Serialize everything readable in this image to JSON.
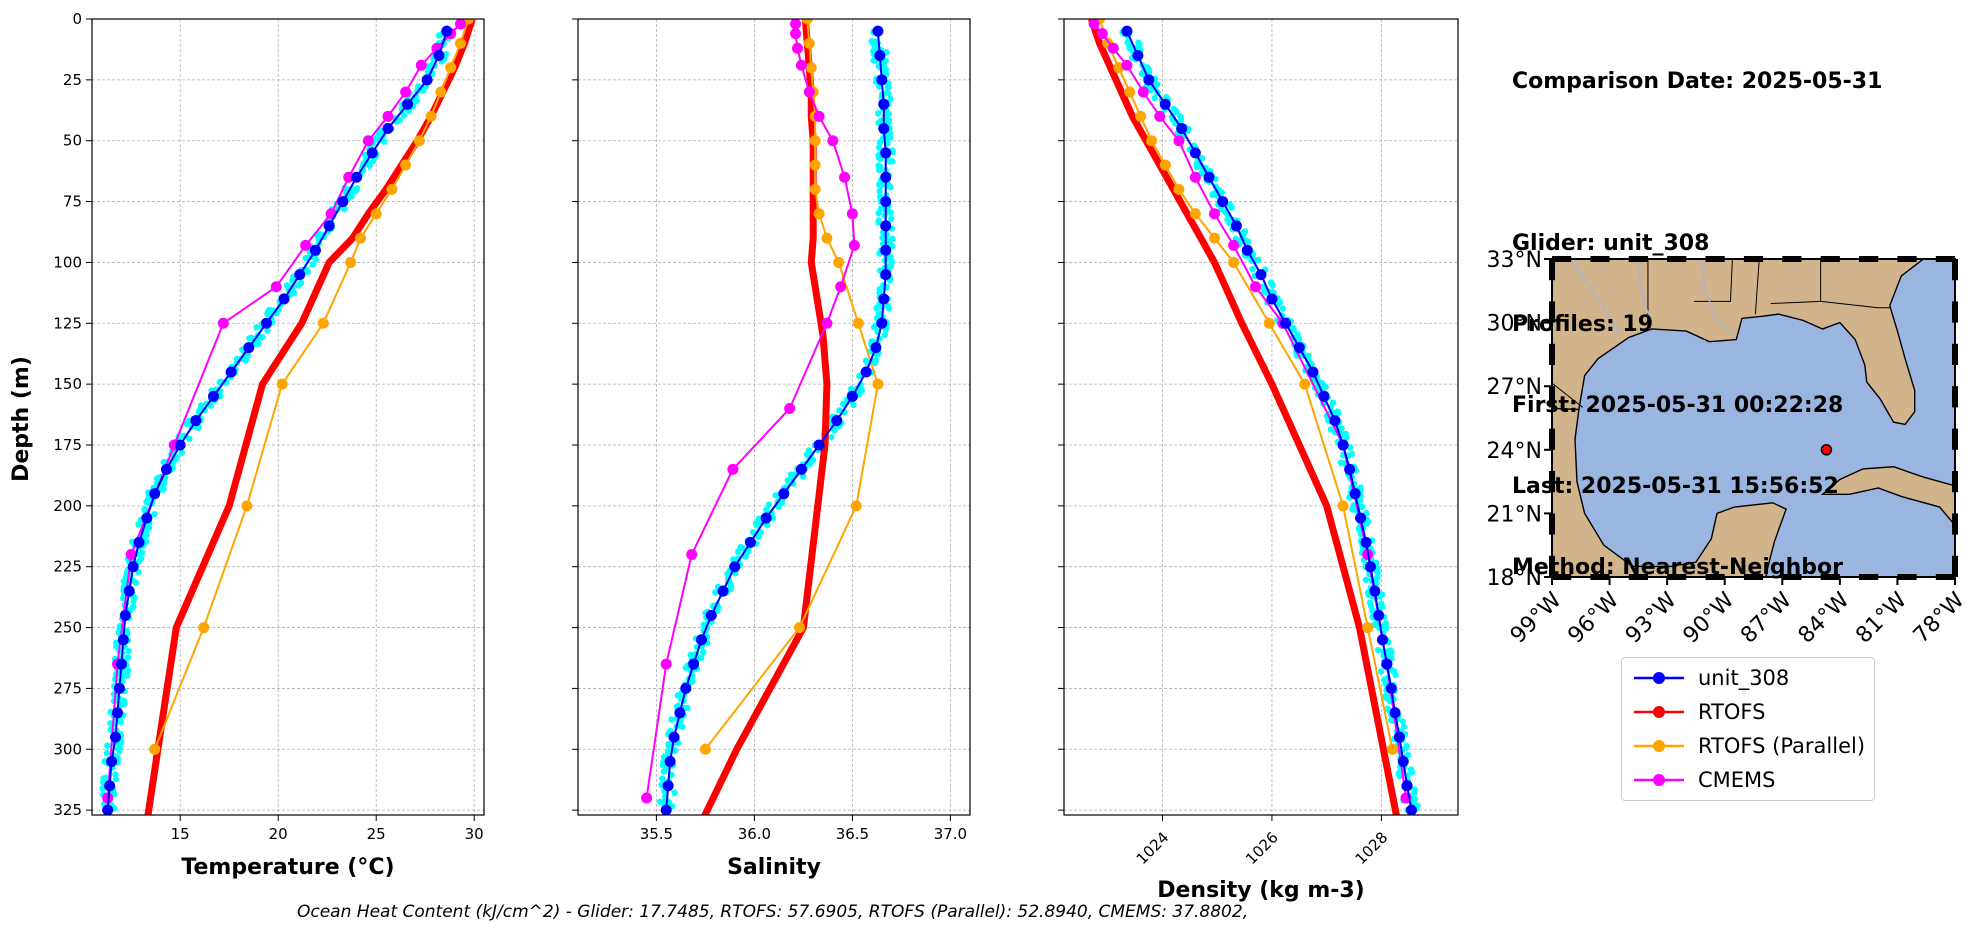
{
  "info": {
    "comparison_date": "Comparison Date: 2025-05-31",
    "glider": "Glider: unit_308",
    "profiles": "Profiles: 19",
    "first": "First: 2025-05-31 00:22:28",
    "last": "Last: 2025-05-31 15:56:52",
    "method": "Method: Nearest-Neighbor"
  },
  "footer": "Ocean Heat Content (kJ/cm^2) - Glider: 17.7485,  RTOFS: 57.6905,  RTOFS (Parallel): 52.8940,  CMEMS: 37.8802,",
  "colors": {
    "glider": "#0000ff",
    "glider_raw": "#00ffff",
    "rtofs": "#ff0000",
    "rtofs_parallel": "#ffa500",
    "cmems": "#ff00ff",
    "land": "#d2b48c",
    "ocean": "#9ab6e0"
  },
  "legend": [
    {
      "label": "unit_308",
      "color": "#0000ff",
      "key": "glider"
    },
    {
      "label": "RTOFS",
      "color": "#ff0000",
      "key": "rtofs"
    },
    {
      "label": "RTOFS (Parallel)",
      "color": "#ffa500",
      "key": "rtofs_parallel"
    },
    {
      "label": "CMEMS",
      "color": "#ff00ff",
      "key": "cmems"
    }
  ],
  "chart_data": [
    {
      "type": "line",
      "xlabel": "Temperature (°C)",
      "ylabel": "Depth (m)",
      "xlim": [
        10.5,
        30.5
      ],
      "ylim": [
        327,
        0
      ],
      "xticks": [
        15,
        20,
        25,
        30
      ],
      "yticks": [
        0,
        25,
        50,
        75,
        100,
        125,
        150,
        175,
        200,
        225,
        250,
        275,
        300,
        325
      ],
      "grid": true,
      "series": [
        {
          "name": "unit_308",
          "key": "glider",
          "x": [
            28.6,
            28.2,
            27.6,
            26.6,
            25.6,
            24.8,
            24.0,
            23.3,
            22.6,
            21.9,
            21.1,
            20.3,
            19.4,
            18.5,
            17.6,
            16.7,
            15.8,
            15.0,
            14.3,
            13.7,
            13.3,
            12.9,
            12.6,
            12.4,
            12.2,
            12.1,
            12.0,
            11.9,
            11.8,
            11.7,
            11.5,
            11.4,
            11.3
          ],
          "y": [
            5,
            15,
            25,
            35,
            45,
            55,
            65,
            75,
            85,
            95,
            105,
            115,
            125,
            135,
            145,
            155,
            165,
            175,
            185,
            195,
            205,
            215,
            225,
            235,
            245,
            255,
            265,
            275,
            285,
            295,
            305,
            315,
            325
          ]
        },
        {
          "name": "RTOFS",
          "key": "rtofs",
          "x": [
            29.9,
            29.5,
            29.0,
            28.4,
            27.8,
            27.1,
            26.3,
            25.5,
            24.6,
            23.8,
            22.6,
            21.2,
            19.2,
            17.5,
            14.8,
            13.3
          ],
          "y": [
            0,
            10,
            20,
            30,
            40,
            50,
            60,
            70,
            80,
            90,
            100,
            125,
            150,
            200,
            250,
            330
          ]
        },
        {
          "name": "RTOFS (Parallel)",
          "key": "rtofs_parallel",
          "x": [
            29.7,
            29.3,
            28.8,
            28.3,
            27.8,
            27.2,
            26.5,
            25.8,
            25.0,
            24.2,
            23.7,
            22.3,
            20.2,
            18.4,
            16.2,
            13.7
          ],
          "y": [
            0,
            10,
            20,
            30,
            40,
            50,
            60,
            70,
            80,
            90,
            100,
            125,
            150,
            200,
            250,
            300
          ]
        },
        {
          "name": "CMEMS",
          "key": "cmems",
          "x": [
            29.3,
            28.8,
            28.1,
            27.3,
            26.5,
            25.6,
            24.6,
            23.6,
            22.7,
            21.4,
            19.9,
            17.2,
            14.7,
            12.5,
            11.8,
            11.3
          ],
          "y": [
            2,
            6,
            12,
            19,
            30,
            40,
            50,
            65,
            80,
            93,
            110,
            125,
            175,
            220,
            265,
            320
          ]
        }
      ]
    },
    {
      "type": "line",
      "xlabel": "Salinity",
      "ylabel": "",
      "xlim": [
        35.1,
        37.1
      ],
      "ylim": [
        327,
        0
      ],
      "xticks": [
        35.5,
        36.0,
        36.5,
        37.0
      ],
      "yticks": [
        0,
        25,
        50,
        75,
        100,
        125,
        150,
        175,
        200,
        225,
        250,
        275,
        300,
        325
      ],
      "grid": true,
      "series": [
        {
          "name": "unit_308",
          "key": "glider",
          "x": [
            36.63,
            36.64,
            36.65,
            36.66,
            36.66,
            36.67,
            36.67,
            36.67,
            36.67,
            36.67,
            36.67,
            36.66,
            36.65,
            36.62,
            36.57,
            36.5,
            36.42,
            36.33,
            36.24,
            36.15,
            36.06,
            35.98,
            35.9,
            35.84,
            35.78,
            35.73,
            35.69,
            35.65,
            35.62,
            35.59,
            35.57,
            35.56,
            35.55
          ],
          "y": [
            5,
            15,
            25,
            35,
            45,
            55,
            65,
            75,
            85,
            95,
            105,
            115,
            125,
            135,
            145,
            155,
            165,
            175,
            185,
            195,
            205,
            215,
            225,
            235,
            245,
            255,
            265,
            275,
            285,
            295,
            305,
            315,
            325
          ]
        },
        {
          "name": "RTOFS",
          "key": "rtofs",
          "x": [
            36.26,
            36.27,
            36.28,
            36.29,
            36.29,
            36.3,
            36.3,
            36.3,
            36.3,
            36.3,
            36.29,
            36.35,
            36.37,
            36.36,
            36.25,
            35.91,
            35.73
          ],
          "y": [
            0,
            10,
            20,
            30,
            40,
            50,
            60,
            70,
            80,
            90,
            100,
            130,
            150,
            175,
            250,
            300,
            330
          ]
        },
        {
          "name": "RTOFS (Parallel)",
          "key": "rtofs_parallel",
          "x": [
            36.27,
            36.28,
            36.29,
            36.3,
            36.31,
            36.31,
            36.31,
            36.31,
            36.33,
            36.37,
            36.43,
            36.53,
            36.63,
            36.52,
            36.23,
            35.75
          ],
          "y": [
            0,
            10,
            20,
            30,
            40,
            50,
            60,
            70,
            80,
            90,
            100,
            125,
            150,
            200,
            250,
            300
          ]
        },
        {
          "name": "CMEMS",
          "key": "cmems",
          "x": [
            36.21,
            36.21,
            36.22,
            36.24,
            36.28,
            36.33,
            36.4,
            36.46,
            36.5,
            36.51,
            36.44,
            36.37,
            36.18,
            35.89,
            35.68,
            35.55,
            35.45
          ],
          "y": [
            2,
            6,
            12,
            19,
            30,
            40,
            50,
            65,
            80,
            93,
            110,
            125,
            160,
            185,
            220,
            265,
            320
          ]
        }
      ]
    },
    {
      "type": "line",
      "xlabel": "Density (kg m-3)",
      "ylabel": "",
      "xlim": [
        1022.2,
        1029.4
      ],
      "ylim": [
        327,
        0
      ],
      "xticks": [
        1024,
        1026,
        1028
      ],
      "yticks": [
        0,
        25,
        50,
        75,
        100,
        125,
        150,
        175,
        200,
        225,
        250,
        275,
        300,
        325
      ],
      "grid": true,
      "series": [
        {
          "name": "unit_308",
          "key": "glider",
          "x": [
            1023.35,
            1023.55,
            1023.75,
            1024.05,
            1024.35,
            1024.6,
            1024.85,
            1025.1,
            1025.35,
            1025.55,
            1025.8,
            1026.0,
            1026.25,
            1026.5,
            1026.75,
            1026.95,
            1027.15,
            1027.3,
            1027.42,
            1027.52,
            1027.62,
            1027.72,
            1027.8,
            1027.88,
            1027.95,
            1028.02,
            1028.1,
            1028.18,
            1028.25,
            1028.33,
            1028.4,
            1028.47,
            1028.55
          ],
          "y": [
            5,
            15,
            25,
            35,
            45,
            55,
            65,
            75,
            85,
            95,
            105,
            115,
            125,
            135,
            145,
            155,
            165,
            175,
            185,
            195,
            205,
            215,
            225,
            235,
            245,
            255,
            265,
            275,
            285,
            295,
            305,
            315,
            325
          ]
        },
        {
          "name": "RTOFS",
          "key": "rtofs",
          "x": [
            1022.7,
            1022.85,
            1023.05,
            1023.25,
            1023.45,
            1023.7,
            1023.95,
            1024.2,
            1024.45,
            1024.7,
            1024.95,
            1025.45,
            1026.0,
            1027.0,
            1027.6,
            1028.3
          ],
          "y": [
            0,
            10,
            20,
            30,
            40,
            50,
            60,
            70,
            80,
            90,
            100,
            125,
            150,
            200,
            250,
            330
          ]
        },
        {
          "name": "RTOFS (Parallel)",
          "key": "rtofs_parallel",
          "x": [
            1022.85,
            1023.0,
            1023.2,
            1023.4,
            1023.6,
            1023.8,
            1024.05,
            1024.3,
            1024.6,
            1024.95,
            1025.3,
            1025.95,
            1026.6,
            1027.3,
            1027.75,
            1028.2
          ],
          "y": [
            0,
            10,
            20,
            30,
            40,
            50,
            60,
            70,
            80,
            90,
            100,
            125,
            150,
            200,
            250,
            300
          ]
        },
        {
          "name": "CMEMS",
          "key": "cmems",
          "x": [
            1022.75,
            1022.9,
            1023.1,
            1023.35,
            1023.65,
            1023.95,
            1024.3,
            1024.6,
            1024.95,
            1025.3,
            1025.7,
            1026.2,
            1027.3,
            1027.75,
            1028.1,
            1028.45
          ],
          "y": [
            2,
            6,
            12,
            19,
            30,
            40,
            50,
            65,
            80,
            93,
            110,
            125,
            175,
            220,
            265,
            320
          ]
        }
      ]
    }
  ],
  "map": {
    "lat_labels": [
      "33°N",
      "30°N",
      "27°N",
      "24°N",
      "21°N",
      "18°N"
    ],
    "lat_values": [
      33,
      30,
      27,
      24,
      21,
      18
    ],
    "lon_labels": [
      "99°W",
      "96°W",
      "93°W",
      "90°W",
      "87°W",
      "84°W",
      "81°W",
      "78°W"
    ],
    "lon_values": [
      -99,
      -96,
      -93,
      -90,
      -87,
      -84,
      -81,
      -78
    ],
    "extent": {
      "lon": [
        -99,
        -78
      ],
      "lat": [
        18,
        33
      ]
    },
    "marker": {
      "lon": -84.7,
      "lat": 24.0
    }
  }
}
